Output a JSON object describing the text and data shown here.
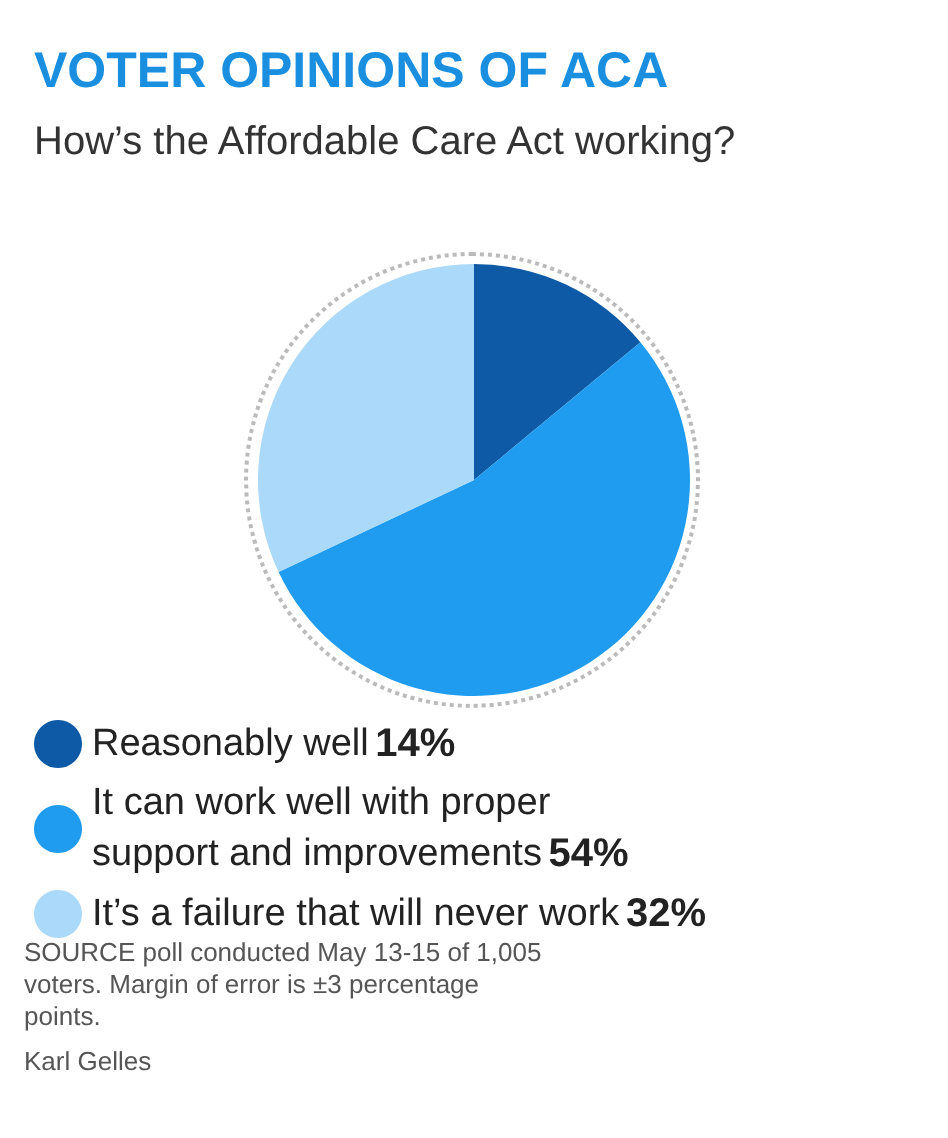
{
  "chart_data": {
    "type": "pie",
    "title": "VOTER OPINIONS OF ACA",
    "subtitle": "How’s the Affordable Care Act working?",
    "categories": [
      "Reasonably well",
      "It can work well with proper support and improvements",
      "It’s a failure that will never work"
    ],
    "values": [
      14,
      54,
      32
    ],
    "colors": [
      "#0e5aa6",
      "#1f9cf0",
      "#aad9f9"
    ],
    "value_labels": [
      "14%",
      "54%",
      "32%"
    ],
    "legend": "bottom",
    "annotations": [
      "SOURCE poll conducted May 13-15 of 1,005 voters. Margin of error is ±3 percentage points.",
      "Karl Gelles"
    ]
  }
}
